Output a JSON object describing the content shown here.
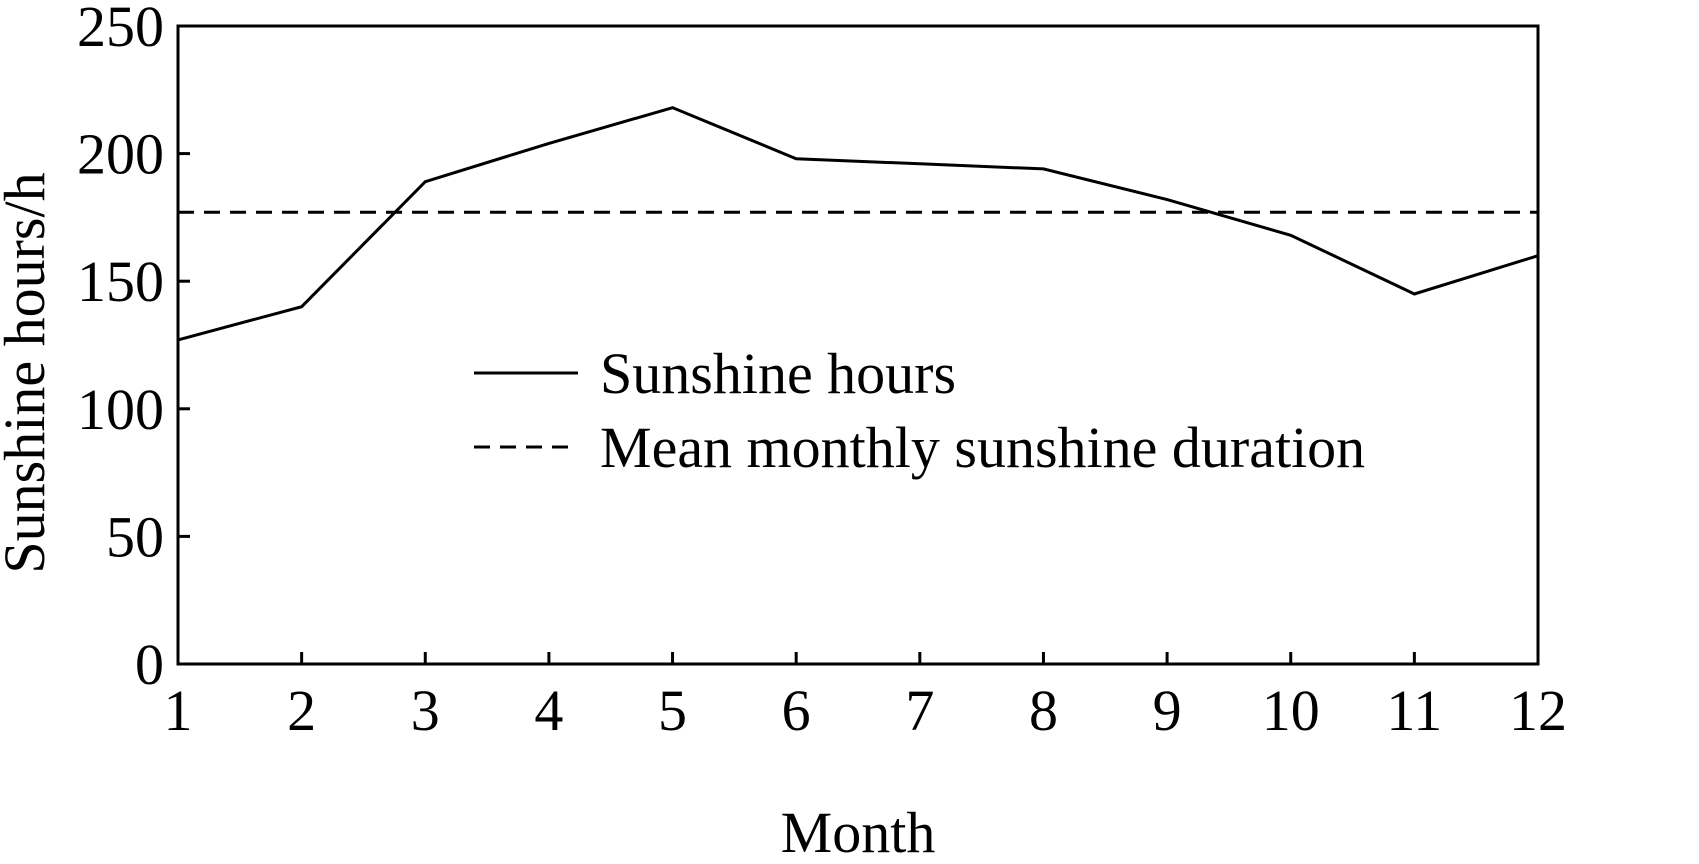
{
  "chart_data": {
    "type": "line",
    "title": "",
    "xlabel": "Month",
    "ylabel": "Sunshine hours/h",
    "x": [
      1,
      2,
      3,
      4,
      5,
      6,
      7,
      8,
      9,
      10,
      11,
      12
    ],
    "xlim": [
      1,
      12
    ],
    "ylim": [
      0,
      250
    ],
    "yticks": [
      0,
      50,
      100,
      150,
      200,
      250
    ],
    "grid": false,
    "legend": "center",
    "series": [
      {
        "name": "Sunshine hours",
        "style": "solid",
        "color": "#000000",
        "values": [
          127,
          140,
          189,
          204,
          218,
          198,
          196,
          194,
          182,
          168,
          145,
          160
        ]
      },
      {
        "name": "Mean monthly sunshine duration",
        "style": "dashed",
        "color": "#000000",
        "values": [
          177,
          177,
          177,
          177,
          177,
          177,
          177,
          177,
          177,
          177,
          177,
          177
        ]
      }
    ]
  }
}
